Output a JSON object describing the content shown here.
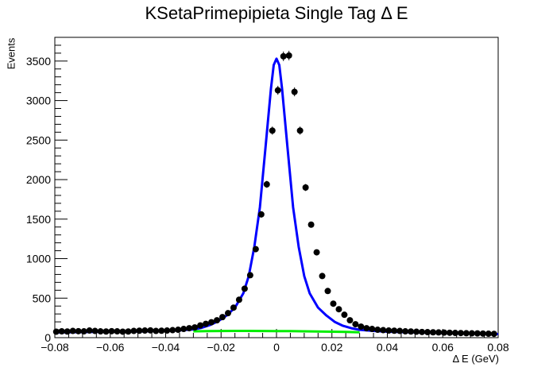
{
  "chart_data": {
    "type": "scatter",
    "title": "KSetaPrimepipieta Single Tag Δ E",
    "xlabel": "Δ E (GeV)",
    "ylabel": "Events",
    "xlim": [
      -0.08,
      0.08
    ],
    "ylim": [
      0,
      3800
    ],
    "x_ticks": [
      "−0.08",
      "−0.06",
      "−0.04",
      "−0.02",
      "0",
      "0.02",
      "0.04",
      "0.06",
      "0.08"
    ],
    "x_tick_values": [
      -0.08,
      -0.06,
      -0.04,
      -0.02,
      0,
      0.02,
      0.04,
      0.06,
      0.08
    ],
    "y_ticks": [
      "0",
      "500",
      "1000",
      "1500",
      "2000",
      "2500",
      "3000",
      "3500"
    ],
    "y_tick_values": [
      0,
      500,
      1000,
      1500,
      2000,
      2500,
      3000,
      3500
    ],
    "series": [
      {
        "name": "data",
        "style": "points-with-errors",
        "color": "#000000",
        "x": [
          -0.0795,
          -0.0775,
          -0.0755,
          -0.0735,
          -0.0715,
          -0.0695,
          -0.0675,
          -0.0655,
          -0.0635,
          -0.0615,
          -0.0595,
          -0.0575,
          -0.0555,
          -0.0535,
          -0.0515,
          -0.0495,
          -0.0475,
          -0.0455,
          -0.0435,
          -0.0415,
          -0.0395,
          -0.0375,
          -0.0355,
          -0.0335,
          -0.0315,
          -0.0295,
          -0.0275,
          -0.0255,
          -0.0235,
          -0.0215,
          -0.0195,
          -0.0175,
          -0.0155,
          -0.0135,
          -0.0115,
          -0.0095,
          -0.0075,
          -0.0055,
          -0.0035,
          -0.0015,
          0.0005,
          0.0025,
          0.0045,
          0.0065,
          0.0085,
          0.0105,
          0.0125,
          0.0145,
          0.0165,
          0.0185,
          0.0205,
          0.0225,
          0.0245,
          0.0265,
          0.0285,
          0.0305,
          0.0325,
          0.0345,
          0.0365,
          0.0385,
          0.0405,
          0.0425,
          0.0445,
          0.0465,
          0.0485,
          0.0505,
          0.0525,
          0.0545,
          0.0565,
          0.0585,
          0.0605,
          0.0625,
          0.0645,
          0.0665,
          0.0685,
          0.0705,
          0.0725,
          0.0745,
          0.0765,
          0.0785
        ],
        "y": [
          75,
          80,
          78,
          85,
          82,
          80,
          90,
          85,
          80,
          78,
          82,
          80,
          76,
          78,
          85,
          88,
          90,
          92,
          85,
          88,
          90,
          95,
          100,
          110,
          120,
          130,
          155,
          175,
          195,
          220,
          260,
          310,
          380,
          480,
          620,
          790,
          1120,
          1560,
          1940,
          2620,
          3130,
          3560,
          3570,
          3110,
          2620,
          1900,
          1430,
          1080,
          780,
          590,
          430,
          360,
          290,
          220,
          170,
          140,
          120,
          110,
          100,
          95,
          90,
          88,
          85,
          80,
          78,
          75,
          72,
          70,
          68,
          66,
          64,
          62,
          60,
          58,
          56,
          55,
          54,
          52,
          50,
          48
        ],
        "errors": [
          9,
          9,
          9,
          9,
          9,
          9,
          9,
          9,
          9,
          9,
          9,
          9,
          9,
          9,
          9,
          9,
          9,
          10,
          9,
          9,
          10,
          10,
          10,
          11,
          11,
          11,
          12,
          13,
          14,
          15,
          16,
          18,
          19,
          22,
          25,
          28,
          33,
          40,
          44,
          51,
          56,
          60,
          60,
          56,
          51,
          44,
          38,
          33,
          28,
          24,
          21,
          19,
          17,
          15,
          13,
          12,
          11,
          10,
          10,
          10,
          9,
          9,
          9,
          9,
          9,
          9,
          8,
          8,
          8,
          8,
          8,
          8,
          8,
          8,
          7,
          7,
          7,
          7,
          7,
          7
        ]
      },
      {
        "name": "total fit",
        "style": "line",
        "color": "#0000ff",
        "x": [
          -0.08,
          -0.075,
          -0.07,
          -0.065,
          -0.06,
          -0.055,
          -0.05,
          -0.045,
          -0.04,
          -0.035,
          -0.03,
          -0.027,
          -0.024,
          -0.021,
          -0.018,
          -0.015,
          -0.012,
          -0.01,
          -0.008,
          -0.006,
          -0.004,
          -0.002,
          -0.001,
          0,
          0.001,
          0.002,
          0.004,
          0.006,
          0.008,
          0.01,
          0.012,
          0.015,
          0.018,
          0.021,
          0.024,
          0.027,
          0.03,
          0.035,
          0.04,
          0.045,
          0.05,
          0.055,
          0.06,
          0.065,
          0.07,
          0.075,
          0.08
        ],
        "y": [
          65,
          67,
          70,
          72,
          74,
          76,
          78,
          82,
          86,
          92,
          105,
          125,
          160,
          210,
          280,
          380,
          560,
          780,
          1150,
          1650,
          2400,
          3150,
          3450,
          3530,
          3450,
          3150,
          2400,
          1650,
          1150,
          780,
          560,
          380,
          280,
          200,
          150,
          120,
          100,
          85,
          75,
          70,
          66,
          62,
          58,
          54,
          50,
          47,
          45
        ]
      },
      {
        "name": "background",
        "style": "line",
        "color": "#00ee00",
        "x": [
          -0.03,
          -0.025,
          -0.02,
          -0.015,
          -0.01,
          -0.005,
          0,
          0.005,
          0.01,
          0.015,
          0.02,
          0.025,
          0.03
        ],
        "y": [
          80,
          82,
          84,
          85,
          85,
          84,
          83,
          82,
          80,
          78,
          75,
          72,
          68
        ]
      }
    ]
  }
}
